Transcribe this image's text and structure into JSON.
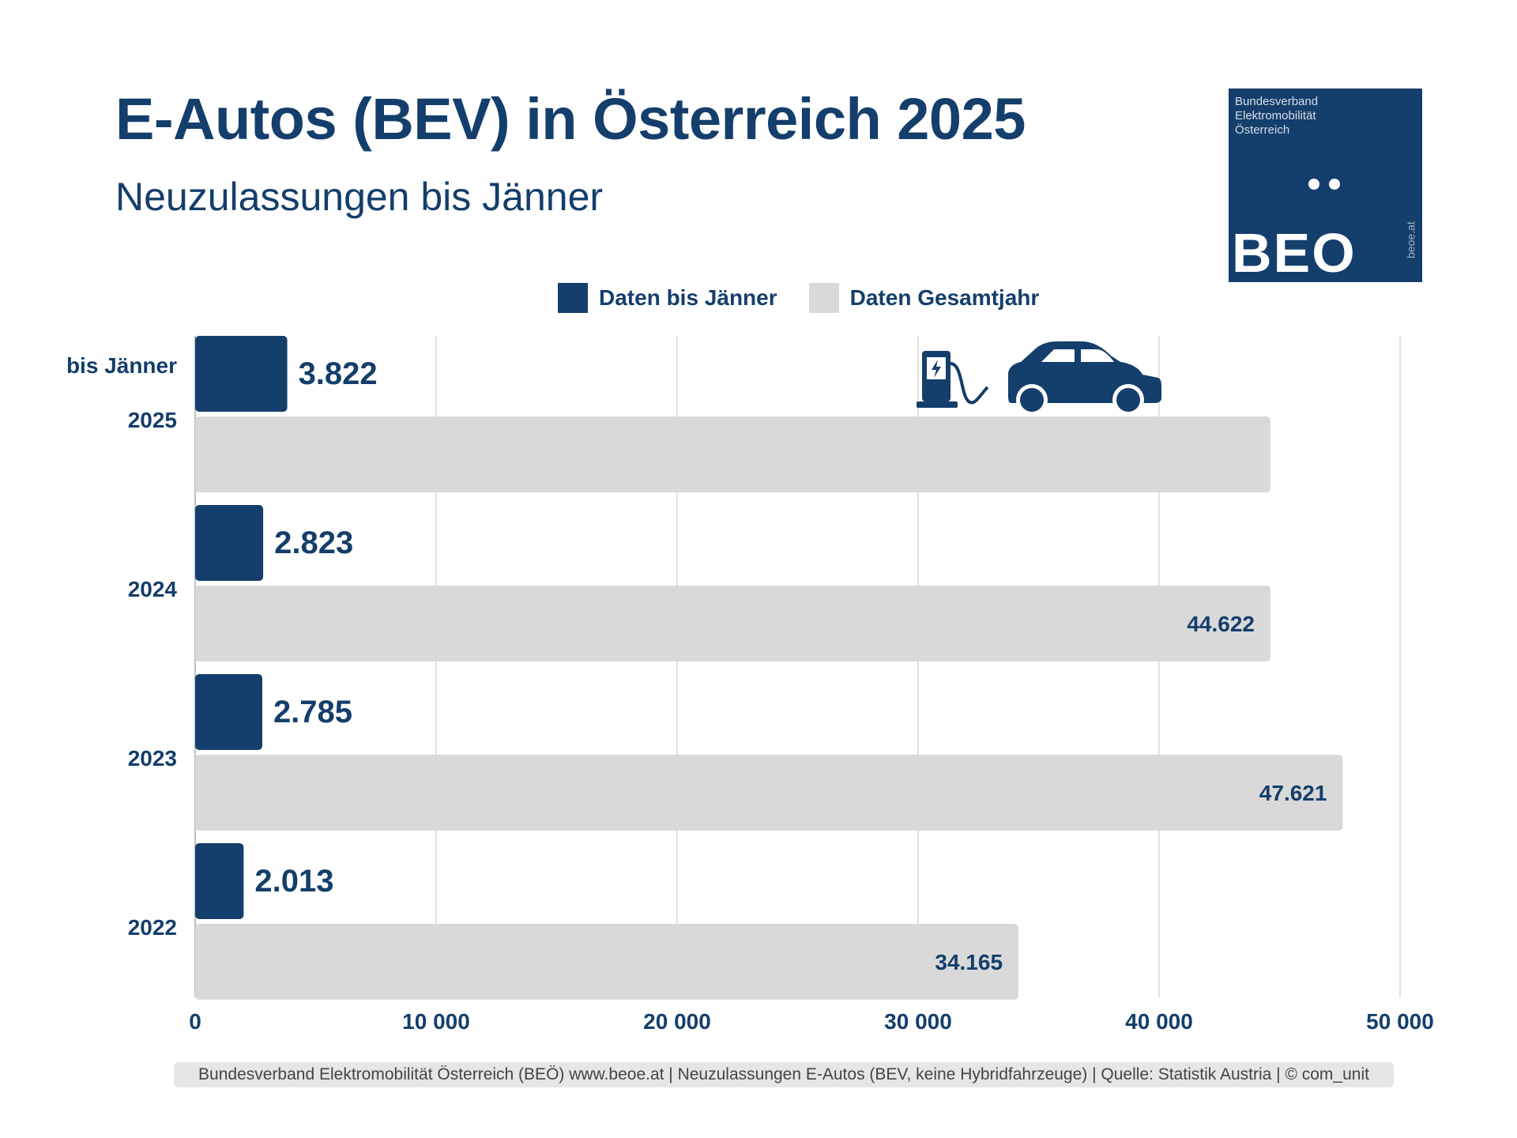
{
  "header": {
    "title": "E-Autos (BEV) in Österreich 2025",
    "subtitle": "Neuzulassungen bis Jänner"
  },
  "logo": {
    "name_lines": [
      "Bundesverband",
      "Elektromobilität",
      "Österreich"
    ],
    "brand": "BEO",
    "url": "beoe.at",
    "bg_color": "#143e6b"
  },
  "legend": [
    {
      "label": "Daten bis Jänner",
      "color": "#143e6b"
    },
    {
      "label": "Daten Gesamtjahr",
      "color": "#d9d9d9"
    }
  ],
  "icons": [
    "charging-station-icon",
    "car-icon"
  ],
  "chart_data": {
    "type": "bar",
    "orientation": "horizontal",
    "categories": [
      "2025",
      "2024",
      "2023",
      "2022"
    ],
    "category_note": "bis Jänner",
    "series": [
      {
        "name": "Daten bis Jänner",
        "values": [
          3822,
          2823,
          2785,
          2013
        ],
        "labels": [
          "3.822",
          "2.823",
          "2.785",
          "2.013"
        ],
        "color": "#143e6b"
      },
      {
        "name": "Daten Gesamtjahr",
        "values": [
          44622,
          44622,
          47621,
          34165
        ],
        "labels": [
          "",
          "44.622",
          "47.621",
          "34.165"
        ],
        "color": "#d9d9d9"
      }
    ],
    "xlim": [
      0,
      50000
    ],
    "xticks": [
      0,
      10000,
      20000,
      30000,
      40000,
      50000
    ],
    "xtick_labels": [
      "0",
      "10 000",
      "20 000",
      "30 000",
      "40 000",
      "50 000"
    ],
    "grid": true,
    "legend_position": "top-center"
  },
  "footer": {
    "text": "Bundesverband Elektromobilität Österreich (BEÖ) www.beoe.at | Neuzulassungen E-Autos (BEV, keine Hybridfahrzeuge) | Quelle: Statistik Austria | © com_unit"
  }
}
